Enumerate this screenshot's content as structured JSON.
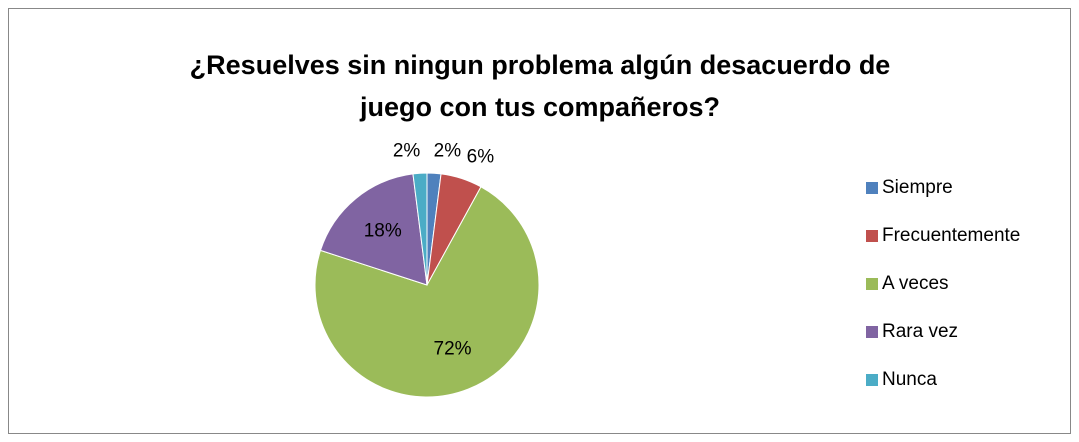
{
  "chart_data": {
    "type": "pie",
    "title": "¿Resuelves sin ningun problema algún desacuerdo de juego con tus compañeros?",
    "categories": [
      "Siempre",
      "Frecuentemente",
      "A veces",
      "Rara vez",
      "Nunca"
    ],
    "values": [
      2,
      6,
      72,
      18,
      2
    ],
    "value_labels": [
      "2%",
      "6%",
      "72%",
      "18%",
      "2%"
    ],
    "colors": [
      "#4f81bd",
      "#c0504d",
      "#9bbb59",
      "#8064a2",
      "#4bacc6"
    ],
    "legend": "right"
  }
}
